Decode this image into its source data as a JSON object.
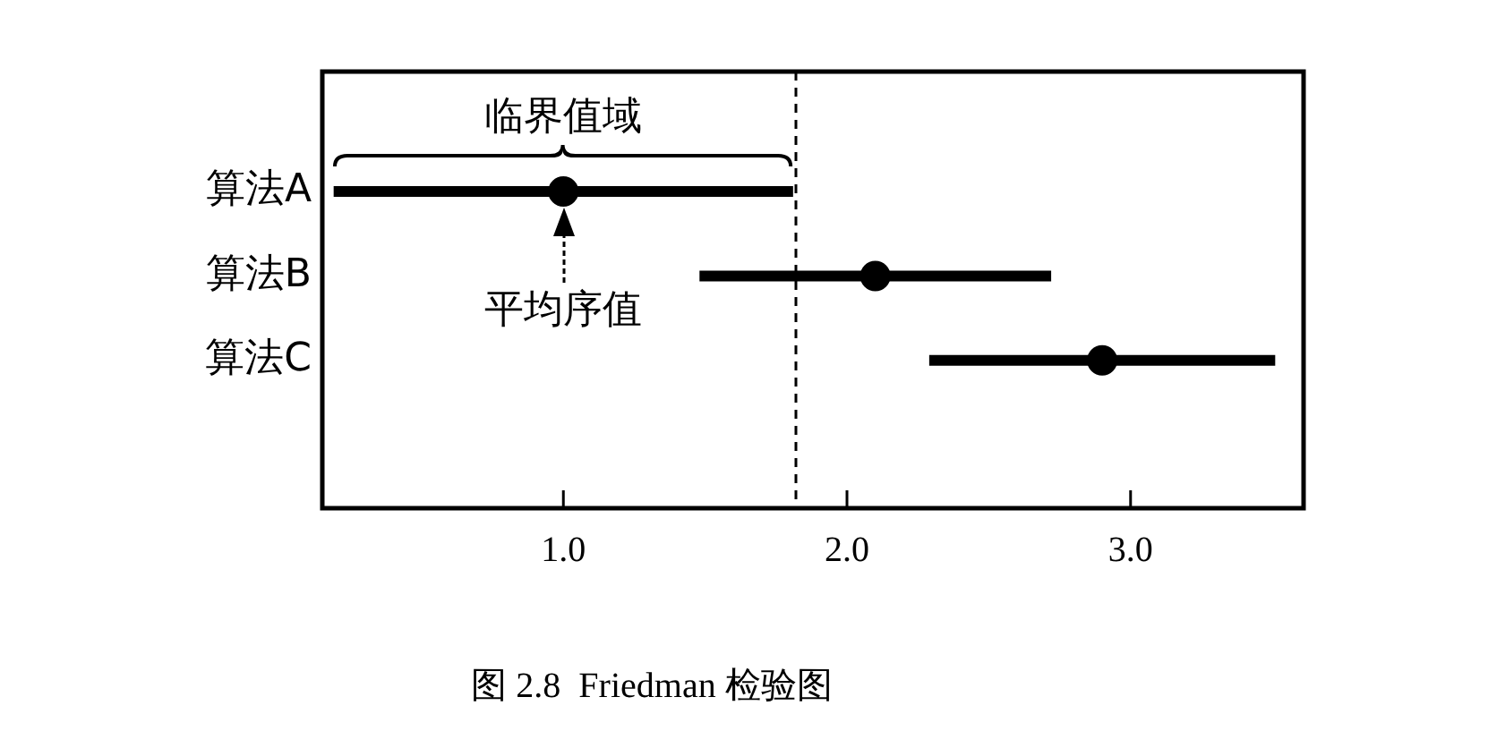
{
  "chart_data": {
    "type": "scatter",
    "orientation": "horizontal",
    "title": "图 2.8  Friedman 检验图",
    "categories": [
      "算法A",
      "算法B",
      "算法C"
    ],
    "values": [
      1.0,
      2.1,
      2.9
    ],
    "errors": [
      0.81,
      0.62,
      0.61
    ],
    "color": "#000000",
    "marker": "circle",
    "xlim": [
      0.15,
      3.61
    ],
    "xticks": [
      {
        "value": 1,
        "label": "1.0"
      },
      {
        "value": 2,
        "label": "2.0"
      },
      {
        "value": 3,
        "label": "3.0"
      }
    ],
    "ref_lines": [
      {
        "axis": "x",
        "value": 1.82,
        "line_style": "dashed",
        "color": "#000000"
      }
    ],
    "annotations": [
      {
        "text": "临界值域",
        "x": 1.0,
        "y": "算法A"
      },
      {
        "text": "平均序值",
        "x": 1.0,
        "y": "算法A"
      }
    ],
    "grid": false,
    "legend": false
  }
}
